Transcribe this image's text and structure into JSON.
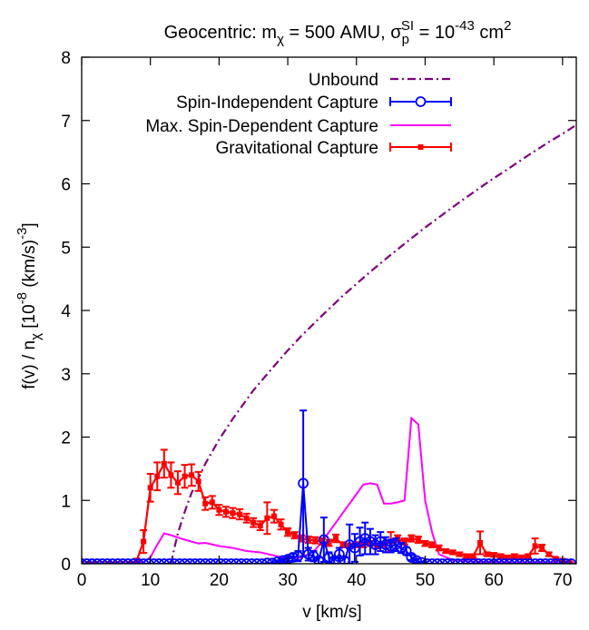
{
  "chart_data": {
    "type": "line",
    "title": {
      "prefix": "Geocentric: m",
      "mass_sub": "χ",
      "mass_value": " = 500 AMU, σ",
      "sigma_sub": "p",
      "sigma_sup": "SI",
      "sigma_value": " = 10",
      "exp_sup": "-43",
      "unit": " cm",
      "unit_sup": "2"
    },
    "xlabel": "v [km/s]",
    "ylabel": {
      "main": "f(v) / n",
      "sub": "χ",
      "mid": " [10",
      "sup1": "-8",
      "mid2": " (km/s)",
      "sup2": "-3",
      "end": "]"
    },
    "xlim": [
      0,
      72
    ],
    "ylim": [
      0,
      8
    ],
    "xticks": [
      0,
      10,
      20,
      30,
      40,
      50,
      60,
      70
    ],
    "yticks": [
      0,
      1,
      2,
      3,
      4,
      5,
      6,
      7,
      8
    ],
    "grid": false,
    "legend_position": "top-right",
    "series": [
      {
        "name": "Unbound",
        "style": "dash-dot",
        "color": "#800080",
        "x": [
          13.0,
          13.5,
          14,
          15,
          16,
          18,
          20,
          22,
          25,
          28,
          30,
          32,
          35,
          38,
          40,
          42,
          45,
          48,
          50,
          52,
          55,
          58,
          60,
          62,
          65,
          68,
          70,
          72
        ],
        "y": [
          0.0,
          0.25,
          0.48,
          0.82,
          1.12,
          1.58,
          1.96,
          2.29,
          2.74,
          3.12,
          3.37,
          3.6,
          3.92,
          4.23,
          4.42,
          4.61,
          4.88,
          5.14,
          5.31,
          5.47,
          5.71,
          5.94,
          6.09,
          6.23,
          6.45,
          6.66,
          6.79,
          6.93
        ]
      },
      {
        "name": "Spin-Independent Capture",
        "style": "line-circles-errorbars",
        "color": "#0000ff",
        "x": [
          0,
          0.75,
          1.5,
          2.25,
          3,
          3.75,
          4.5,
          5.25,
          6,
          6.75,
          7.5,
          8.25,
          9,
          9.75,
          10.5,
          11.25,
          12,
          12.75,
          13.5,
          14.25,
          15,
          15.75,
          16.5,
          17.25,
          18,
          18.75,
          19.5,
          20.25,
          21,
          21.75,
          22.5,
          23.25,
          24,
          24.75,
          25.5,
          26.25,
          27,
          27.75,
          28.5,
          29.25,
          30,
          30.75,
          31.5,
          32.25,
          33,
          33.75,
          34.5,
          35.25,
          36,
          36.75,
          37.5,
          38.25,
          39,
          39.75,
          40.5,
          41.25,
          42,
          42.75,
          43.5,
          44.25,
          45,
          45.75,
          46.5,
          47.25,
          48,
          48.75,
          49.5,
          50.25,
          51,
          51.75,
          52.5,
          53.25,
          54,
          54.75,
          55.5,
          56.25,
          57,
          57.75,
          58.5,
          59.25,
          60,
          60.75,
          61.5,
          62.25,
          63,
          63.75,
          64.5,
          65.25,
          66,
          66.75,
          67.5,
          68.25,
          69,
          69.75,
          70.5,
          71.25
        ],
        "y": [
          0,
          0,
          0,
          0,
          0,
          0,
          0,
          0,
          0,
          0,
          0,
          0,
          0,
          0,
          0,
          0,
          0,
          0,
          0,
          0,
          0,
          0,
          0,
          0,
          0,
          0,
          0,
          0,
          0,
          0,
          0,
          0,
          0,
          0,
          0,
          0,
          0.01,
          0.01,
          0.03,
          0.05,
          0.07,
          0.1,
          0.12,
          1.27,
          0.15,
          0.12,
          0.05,
          0.38,
          0.1,
          0.05,
          0.15,
          0.05,
          0.3,
          0.25,
          0.35,
          0.4,
          0.35,
          0.3,
          0.35,
          0.3,
          0.28,
          0.3,
          0.25,
          0.2,
          0.1,
          0.05,
          0.02,
          0,
          0,
          0,
          0,
          0,
          0,
          0,
          0,
          0,
          0,
          0,
          0,
          0,
          0,
          0,
          0,
          0,
          0,
          0,
          0,
          0,
          0,
          0,
          0,
          0,
          0,
          0,
          0,
          0
        ],
        "err": [
          0,
          0,
          0,
          0,
          0,
          0,
          0,
          0,
          0,
          0,
          0,
          0,
          0,
          0,
          0,
          0,
          0,
          0,
          0,
          0,
          0,
          0,
          0,
          0,
          0,
          0,
          0,
          0,
          0,
          0,
          0,
          0,
          0,
          0,
          0,
          0,
          0,
          0,
          0.02,
          0.03,
          0.04,
          0.06,
          0.08,
          1.15,
          0.1,
          0.08,
          0.05,
          0.35,
          0.08,
          0.05,
          0.1,
          0.05,
          0.32,
          0.22,
          0.22,
          0.25,
          0.2,
          0.15,
          0.15,
          0.12,
          0.1,
          0.1,
          0.08,
          0.06,
          0.04,
          0.03,
          0.01,
          0,
          0,
          0,
          0,
          0,
          0,
          0,
          0,
          0,
          0,
          0,
          0,
          0,
          0,
          0,
          0,
          0,
          0,
          0,
          0,
          0,
          0,
          0,
          0,
          0,
          0,
          0,
          0,
          0
        ]
      },
      {
        "name": "Max. Spin-Dependent Capture",
        "style": "line",
        "color": "#ff00ff",
        "x": [
          0,
          8,
          9,
          10,
          11,
          12,
          13,
          15,
          17,
          18,
          20,
          22,
          24,
          26,
          28,
          30,
          32,
          33,
          34,
          35,
          36,
          37,
          38,
          39,
          40,
          41,
          42,
          43,
          44,
          45,
          46,
          47,
          48,
          49,
          50,
          51,
          52,
          54,
          56,
          58,
          60,
          62,
          64,
          66,
          68,
          70,
          72
        ],
        "y": [
          0,
          0,
          0.03,
          0.1,
          0.3,
          0.48,
          0.45,
          0.38,
          0.32,
          0.33,
          0.28,
          0.25,
          0.2,
          0.18,
          0.13,
          0.08,
          0.1,
          0.15,
          0.22,
          0.35,
          0.5,
          0.65,
          0.8,
          0.95,
          1.1,
          1.25,
          1.27,
          1.25,
          0.95,
          0.95,
          0.97,
          1.0,
          2.3,
          2.2,
          1.0,
          0.5,
          0.15,
          0.06,
          0.04,
          0.03,
          0.03,
          0.02,
          0.02,
          0.02,
          0.02,
          0.01,
          0.01
        ]
      },
      {
        "name": "Gravitational Capture",
        "style": "line-squares-errorbars",
        "color": "#ff0000",
        "x": [
          0,
          1,
          2,
          3,
          4,
          5,
          6,
          7,
          8,
          9,
          10,
          11,
          12,
          13,
          14,
          15,
          16,
          17,
          18,
          19,
          20,
          21,
          22,
          23,
          24,
          25,
          26,
          27,
          28,
          29,
          30,
          31,
          32,
          33,
          34,
          35,
          36,
          37,
          38,
          39,
          40,
          41,
          42,
          43,
          44,
          45,
          46,
          47,
          48,
          49,
          50,
          51,
          52,
          53,
          54,
          55,
          56,
          57,
          58,
          59,
          60,
          61,
          62,
          63,
          64,
          65,
          66,
          67,
          68,
          69,
          70,
          71
        ],
        "y": [
          0,
          0,
          0,
          0,
          0,
          0,
          0,
          0,
          0.05,
          0.35,
          1.2,
          1.38,
          1.58,
          1.4,
          1.28,
          1.38,
          1.4,
          1.3,
          0.95,
          0.97,
          0.85,
          0.82,
          0.8,
          0.78,
          0.72,
          0.65,
          0.6,
          0.72,
          0.75,
          0.62,
          0.5,
          0.45,
          0.4,
          0.38,
          0.37,
          0.35,
          0.33,
          0.4,
          0.3,
          0.28,
          0.3,
          0.3,
          0.32,
          0.28,
          0.3,
          0.35,
          0.4,
          0.35,
          0.4,
          0.38,
          0.32,
          0.3,
          0.25,
          0.2,
          0.18,
          0.15,
          0.12,
          0.12,
          0.33,
          0.15,
          0.14,
          0.12,
          0.1,
          0.12,
          0.1,
          0.12,
          0.28,
          0.25,
          0.15,
          0.08,
          0.05,
          0.02
        ],
        "err": [
          0,
          0,
          0,
          0,
          0,
          0,
          0,
          0,
          0.03,
          0.18,
          0.22,
          0.22,
          0.22,
          0.2,
          0.18,
          0.18,
          0.17,
          0.15,
          0.1,
          0.1,
          0.08,
          0.08,
          0.08,
          0.08,
          0.07,
          0.07,
          0.07,
          0.25,
          0.1,
          0.08,
          0.06,
          0.05,
          0.05,
          0.05,
          0.05,
          0.05,
          0.05,
          0.06,
          0.04,
          0.04,
          0.04,
          0.04,
          0.04,
          0.04,
          0.04,
          0.15,
          0.05,
          0.05,
          0.05,
          0.05,
          0.04,
          0.04,
          0.04,
          0.03,
          0.03,
          0.03,
          0.03,
          0.03,
          0.18,
          0.03,
          0.03,
          0.03,
          0.03,
          0.03,
          0.03,
          0.03,
          0.12,
          0.05,
          0.03,
          0.02,
          0.02,
          0.01
        ]
      }
    ]
  }
}
